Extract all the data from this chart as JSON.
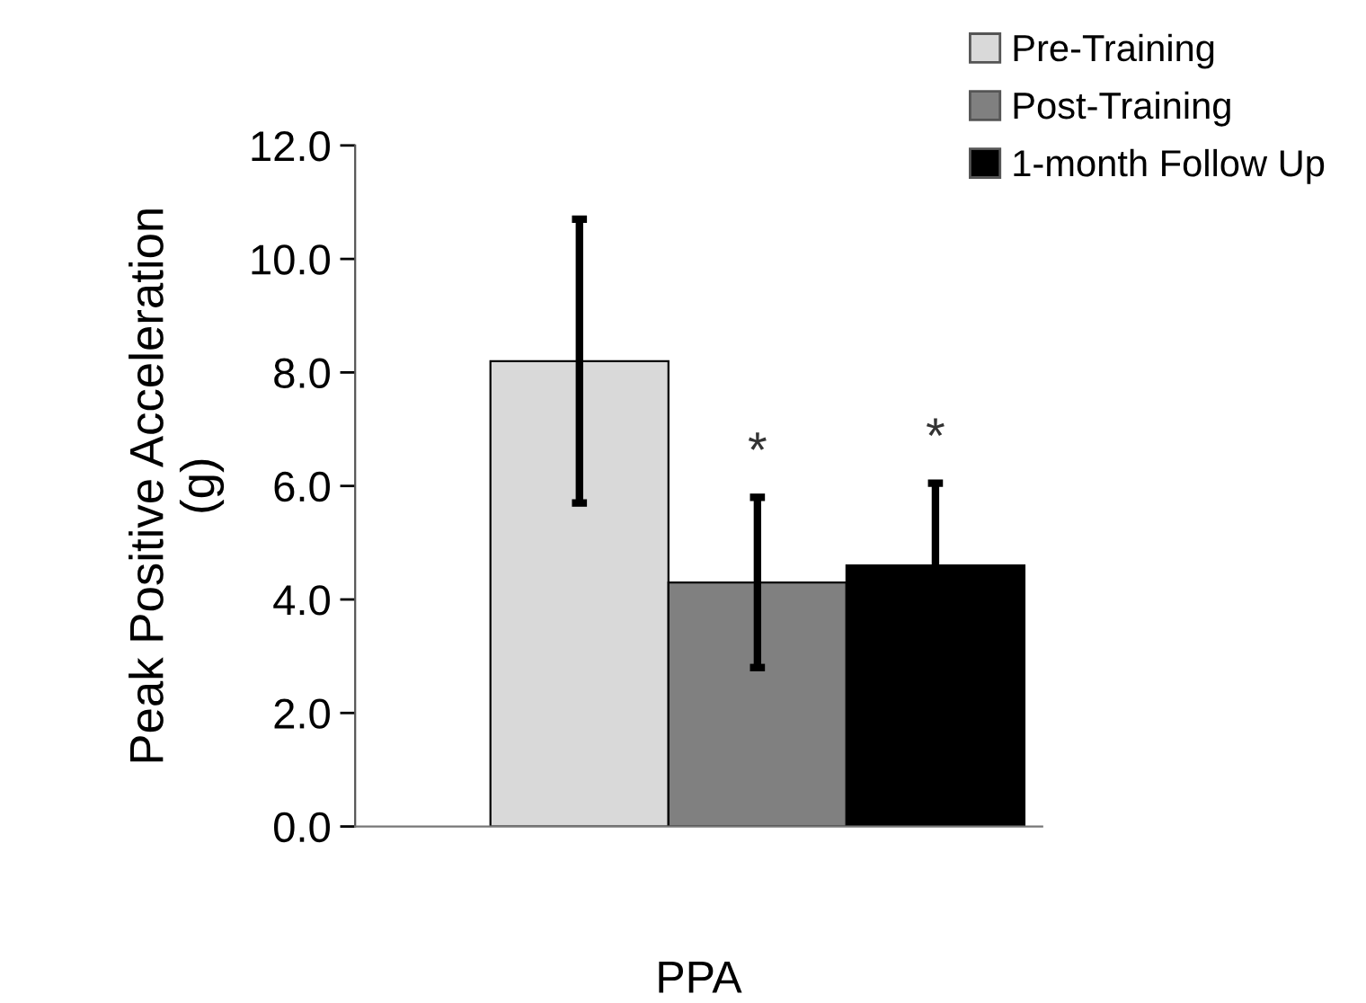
{
  "chart_data": {
    "type": "bar",
    "ylabel": "Peak Positive Acceleration\n(g)",
    "xlabel": "PPA",
    "categories": [
      null,
      null,
      null
    ],
    "series": [
      {
        "name": "Pre-Training",
        "color": "#d9d9d9",
        "values": [
          8.2,
          null,
          null
        ],
        "errors": [
          2.5,
          null,
          null
        ]
      },
      {
        "name": "Post-Training",
        "color": "#808080",
        "values": [
          null,
          4.3,
          null
        ],
        "errors": [
          null,
          1.5,
          null
        ]
      },
      {
        "name": "1-month Follow Up",
        "color": "#000000",
        "values": [
          null,
          null,
          4.6
        ],
        "errors": [
          null,
          null,
          1.45
        ]
      }
    ],
    "ylim": [
      0,
      12
    ],
    "yticks": [
      {
        "value": 0,
        "label": "0.0"
      },
      {
        "value": 2,
        "label": "2.0"
      },
      {
        "value": 4,
        "label": "4.0"
      },
      {
        "value": 6,
        "label": "6.0"
      },
      {
        "value": 8,
        "label": "8.0"
      },
      {
        "value": 10,
        "label": "10.0"
      },
      {
        "value": 12,
        "label": "12.0"
      }
    ],
    "annotations": [
      "*",
      "*"
    ],
    "grid": false,
    "legend": "top right"
  }
}
